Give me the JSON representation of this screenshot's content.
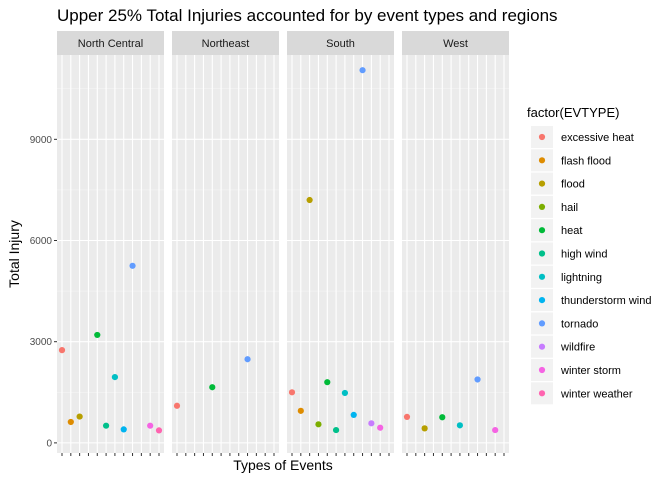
{
  "chart_data": {
    "type": "scatter",
    "title": "Upper 25% Total Injuries accounted for by event types and regions",
    "xlabel": "Types of Events",
    "ylabel": "Total Injury",
    "ylim": [
      -300,
      11500
    ],
    "yticks": [
      {
        "value": 0,
        "label": "0"
      },
      {
        "value": 3000,
        "label": "3000"
      },
      {
        "value": 6000,
        "label": "6000"
      },
      {
        "value": 9000,
        "label": "9000"
      }
    ],
    "grid": true,
    "legend": {
      "title": "factor(EVTYPE)",
      "position": "right"
    },
    "categories": [
      "excessive heat",
      "flash flood",
      "flood",
      "hail",
      "heat",
      "high wind",
      "lightning",
      "thunderstorm wind",
      "tornado",
      "wildfire",
      "winter storm",
      "winter weather"
    ],
    "colors": [
      "#F8766D",
      "#DE8C00",
      "#B79F00",
      "#7CAE00",
      "#00BA38",
      "#00C08B",
      "#00BFC4",
      "#00B4F0",
      "#619CFF",
      "#C77CFF",
      "#F564E3",
      "#FF64B0"
    ],
    "panels": [
      {
        "name": "North Central",
        "points": [
          {
            "type": "excessive heat",
            "y": 2750
          },
          {
            "type": "flash flood",
            "y": 620
          },
          {
            "type": "flood",
            "y": 780
          },
          {
            "type": "heat",
            "y": 3200
          },
          {
            "type": "high wind",
            "y": 510
          },
          {
            "type": "lightning",
            "y": 1950
          },
          {
            "type": "thunderstorm wind",
            "y": 400
          },
          {
            "type": "tornado",
            "y": 5250
          },
          {
            "type": "winter storm",
            "y": 510
          },
          {
            "type": "winter weather",
            "y": 370
          }
        ]
      },
      {
        "name": "Northeast",
        "points": [
          {
            "type": "excessive heat",
            "y": 1100
          },
          {
            "type": "heat",
            "y": 1650
          },
          {
            "type": "tornado",
            "y": 2480
          }
        ]
      },
      {
        "name": "South",
        "points": [
          {
            "type": "excessive heat",
            "y": 1500
          },
          {
            "type": "flash flood",
            "y": 950
          },
          {
            "type": "flood",
            "y": 7200
          },
          {
            "type": "hail",
            "y": 550
          },
          {
            "type": "heat",
            "y": 1800
          },
          {
            "type": "high wind",
            "y": 380
          },
          {
            "type": "lightning",
            "y": 1480
          },
          {
            "type": "thunderstorm wind",
            "y": 830
          },
          {
            "type": "tornado",
            "y": 11050
          },
          {
            "type": "wildfire",
            "y": 580
          },
          {
            "type": "winter storm",
            "y": 450
          }
        ]
      },
      {
        "name": "West",
        "points": [
          {
            "type": "excessive heat",
            "y": 770
          },
          {
            "type": "flood",
            "y": 430
          },
          {
            "type": "heat",
            "y": 760
          },
          {
            "type": "lightning",
            "y": 520
          },
          {
            "type": "tornado",
            "y": 1880
          },
          {
            "type": "winter storm",
            "y": 380
          }
        ]
      }
    ]
  }
}
